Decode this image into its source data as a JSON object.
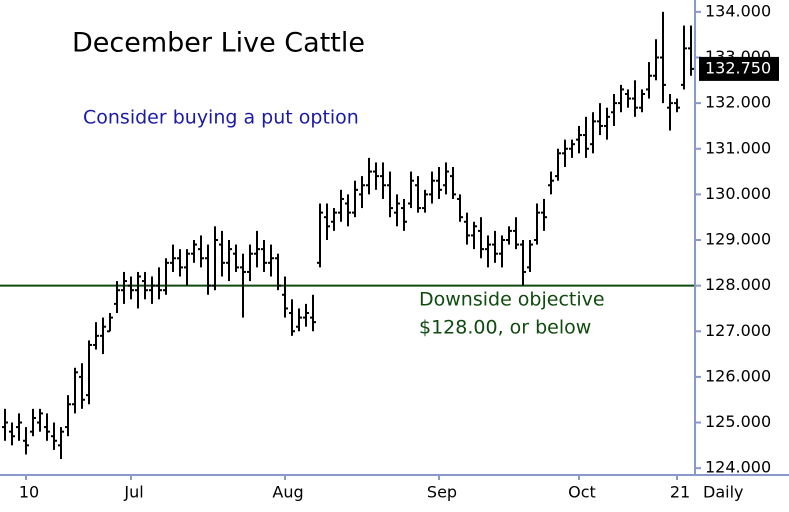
{
  "chart_data": {
    "type": "ohlc",
    "title": "December Live Cattle",
    "annotations": [
      "Consider buying a put option",
      "Downside objective",
      "$128.00, or below"
    ],
    "x_label": "Daily",
    "color": "#000000",
    "categories": [
      null,
      null,
      null,
      "10",
      null,
      null,
      null,
      null,
      null,
      null,
      null,
      null,
      null,
      null,
      null,
      null,
      null,
      null,
      "Jul",
      null,
      null,
      null,
      null,
      null,
      null,
      null,
      null,
      null,
      null,
      null,
      null,
      null,
      null,
      null,
      null,
      null,
      null,
      null,
      null,
      null,
      "Aug",
      null,
      null,
      null,
      null,
      null,
      null,
      null,
      null,
      null,
      null,
      null,
      null,
      null,
      null,
      null,
      null,
      null,
      null,
      null,
      null,
      null,
      "Sep",
      null,
      null,
      null,
      null,
      null,
      null,
      null,
      null,
      null,
      null,
      null,
      null,
      null,
      null,
      null,
      null,
      null,
      null,
      null,
      "Oct",
      null,
      null,
      null,
      null,
      null,
      null,
      null,
      null,
      null,
      null,
      null,
      null,
      null,
      "21",
      null,
      null
    ],
    "series": [
      {
        "name": "December Live Cattle",
        "open": [
          124.9,
          124.8,
          124.9,
          124.6,
          124.8,
          125.0,
          124.9,
          124.7,
          124.5,
          124.9,
          125.4,
          126.0,
          125.6,
          126.7,
          126.9,
          127.0,
          127.6,
          127.9,
          128.0,
          127.9,
          128.1,
          127.9,
          128.0,
          127.9,
          128.5,
          128.6,
          128.4,
          128.7,
          128.8,
          128.6,
          128.0,
          128.9,
          128.5,
          128.7,
          128.4,
          128.3,
          128.7,
          128.8,
          128.5,
          128.6,
          127.8,
          127.4,
          127.1,
          127.3,
          127.3,
          128.5,
          129.5,
          129.4,
          129.6,
          129.8,
          129.6,
          130.0,
          130.2,
          130.5,
          130.4,
          130.2,
          129.6,
          129.7,
          129.8,
          130.2,
          129.7,
          130.0,
          130.3,
          130.2,
          130.4,
          129.9,
          129.4,
          129.1,
          129.2,
          128.8,
          128.9,
          128.7,
          129.0,
          129.2,
          128.9,
          128.4,
          129.0,
          129.6,
          130.2,
          130.4,
          130.9,
          131.0,
          131.2,
          131.3,
          131.1,
          131.6,
          131.5,
          131.8,
          132.0,
          132.2,
          132.1,
          131.9,
          132.3,
          132.6,
          133.0,
          131.9,
          132.0,
          132.4,
          133.2
        ],
        "high": [
          125.3,
          125.0,
          125.2,
          124.9,
          125.3,
          125.3,
          125.2,
          125.0,
          124.9,
          125.6,
          126.2,
          126.3,
          126.8,
          127.2,
          127.3,
          127.4,
          128.1,
          128.3,
          128.2,
          128.3,
          128.3,
          128.2,
          128.4,
          128.6,
          128.9,
          128.8,
          128.8,
          129.0,
          129.1,
          128.9,
          129.3,
          129.2,
          129.0,
          128.9,
          128.7,
          128.9,
          129.2,
          129.0,
          128.9,
          128.7,
          128.2,
          127.7,
          127.5,
          127.6,
          127.8,
          129.8,
          129.8,
          129.7,
          130.1,
          130.0,
          130.3,
          130.4,
          130.8,
          130.7,
          130.7,
          130.5,
          130.0,
          129.9,
          130.5,
          130.4,
          130.1,
          130.5,
          130.6,
          130.7,
          130.6,
          130.0,
          129.6,
          129.4,
          129.5,
          129.1,
          129.2,
          129.1,
          129.3,
          129.5,
          129.0,
          129.0,
          129.8,
          129.9,
          130.5,
          131.0,
          131.2,
          131.2,
          131.5,
          131.7,
          131.8,
          132.0,
          131.9,
          132.2,
          132.4,
          132.3,
          132.5,
          132.3,
          132.9,
          133.4,
          134.0,
          132.2,
          132.1,
          133.7,
          133.7
        ],
        "low": [
          124.6,
          124.5,
          124.6,
          124.3,
          124.7,
          124.8,
          124.6,
          124.4,
          124.2,
          124.7,
          125.2,
          125.3,
          125.4,
          126.6,
          126.5,
          127.0,
          127.4,
          127.6,
          127.7,
          127.5,
          127.7,
          127.6,
          127.7,
          127.8,
          128.3,
          128.2,
          128.0,
          128.5,
          128.4,
          127.8,
          127.9,
          128.2,
          128.1,
          128.3,
          127.3,
          128.1,
          128.4,
          128.3,
          128.2,
          127.9,
          127.3,
          126.9,
          127.0,
          127.1,
          127.0,
          128.4,
          129.0,
          129.2,
          129.4,
          129.3,
          129.5,
          129.7,
          130.0,
          130.1,
          129.9,
          129.5,
          129.3,
          129.2,
          129.7,
          129.6,
          129.6,
          129.8,
          129.9,
          130.0,
          129.9,
          129.4,
          128.9,
          128.8,
          128.6,
          128.4,
          128.5,
          128.4,
          128.9,
          128.8,
          128.0,
          128.3,
          128.9,
          129.2,
          130.0,
          130.3,
          130.6,
          130.8,
          130.9,
          130.8,
          130.9,
          131.3,
          131.2,
          131.5,
          131.8,
          131.9,
          131.7,
          131.8,
          132.1,
          132.5,
          132.0,
          131.4,
          131.8,
          132.3,
          132.6
        ],
        "close": [
          125.0,
          124.7,
          125.0,
          124.5,
          125.1,
          125.2,
          124.8,
          124.6,
          124.8,
          125.4,
          126.1,
          125.5,
          126.7,
          126.9,
          127.1,
          127.3,
          127.9,
          128.1,
          127.9,
          128.2,
          127.9,
          128.0,
          127.9,
          128.5,
          128.6,
          128.4,
          128.7,
          128.9,
          128.6,
          128.0,
          129.0,
          128.5,
          128.8,
          128.4,
          128.3,
          128.7,
          128.8,
          128.5,
          128.6,
          128.0,
          127.5,
          127.0,
          127.3,
          127.4,
          127.2,
          129.6,
          129.3,
          129.6,
          129.9,
          129.6,
          130.1,
          130.2,
          130.5,
          130.4,
          130.2,
          129.7,
          129.8,
          129.4,
          130.3,
          129.7,
          130.0,
          130.3,
          130.1,
          130.5,
          130.0,
          129.5,
          129.1,
          129.3,
          128.8,
          128.9,
          128.7,
          129.0,
          129.2,
          128.9,
          128.3,
          128.9,
          129.6,
          129.5,
          130.3,
          130.9,
          131.0,
          131.1,
          131.3,
          131.0,
          131.6,
          131.5,
          131.7,
          132.0,
          132.3,
          132.1,
          131.9,
          132.2,
          132.6,
          133.0,
          132.4,
          132.0,
          131.9,
          133.2,
          132.75
        ],
        "last_label": "132.750"
      }
    ],
    "reference_line": {
      "value": 128,
      "color": "#0f4a0f"
    },
    "ylim": [
      123.85,
      134.26
    ],
    "yticks": [
      {
        "value": 124,
        "label": "124.000"
      },
      {
        "value": 125,
        "label": "125.000"
      },
      {
        "value": 126,
        "label": "126.000"
      },
      {
        "value": 127,
        "label": "127.000"
      },
      {
        "value": 128,
        "label": "128.000"
      },
      {
        "value": 129,
        "label": "129.000"
      },
      {
        "value": 130,
        "label": "130.000"
      },
      {
        "value": 131,
        "label": "131.000"
      },
      {
        "value": 132,
        "label": "132.000"
      },
      {
        "value": 133,
        "label": "133.000"
      },
      {
        "value": 134,
        "label": "134.000"
      }
    ]
  }
}
